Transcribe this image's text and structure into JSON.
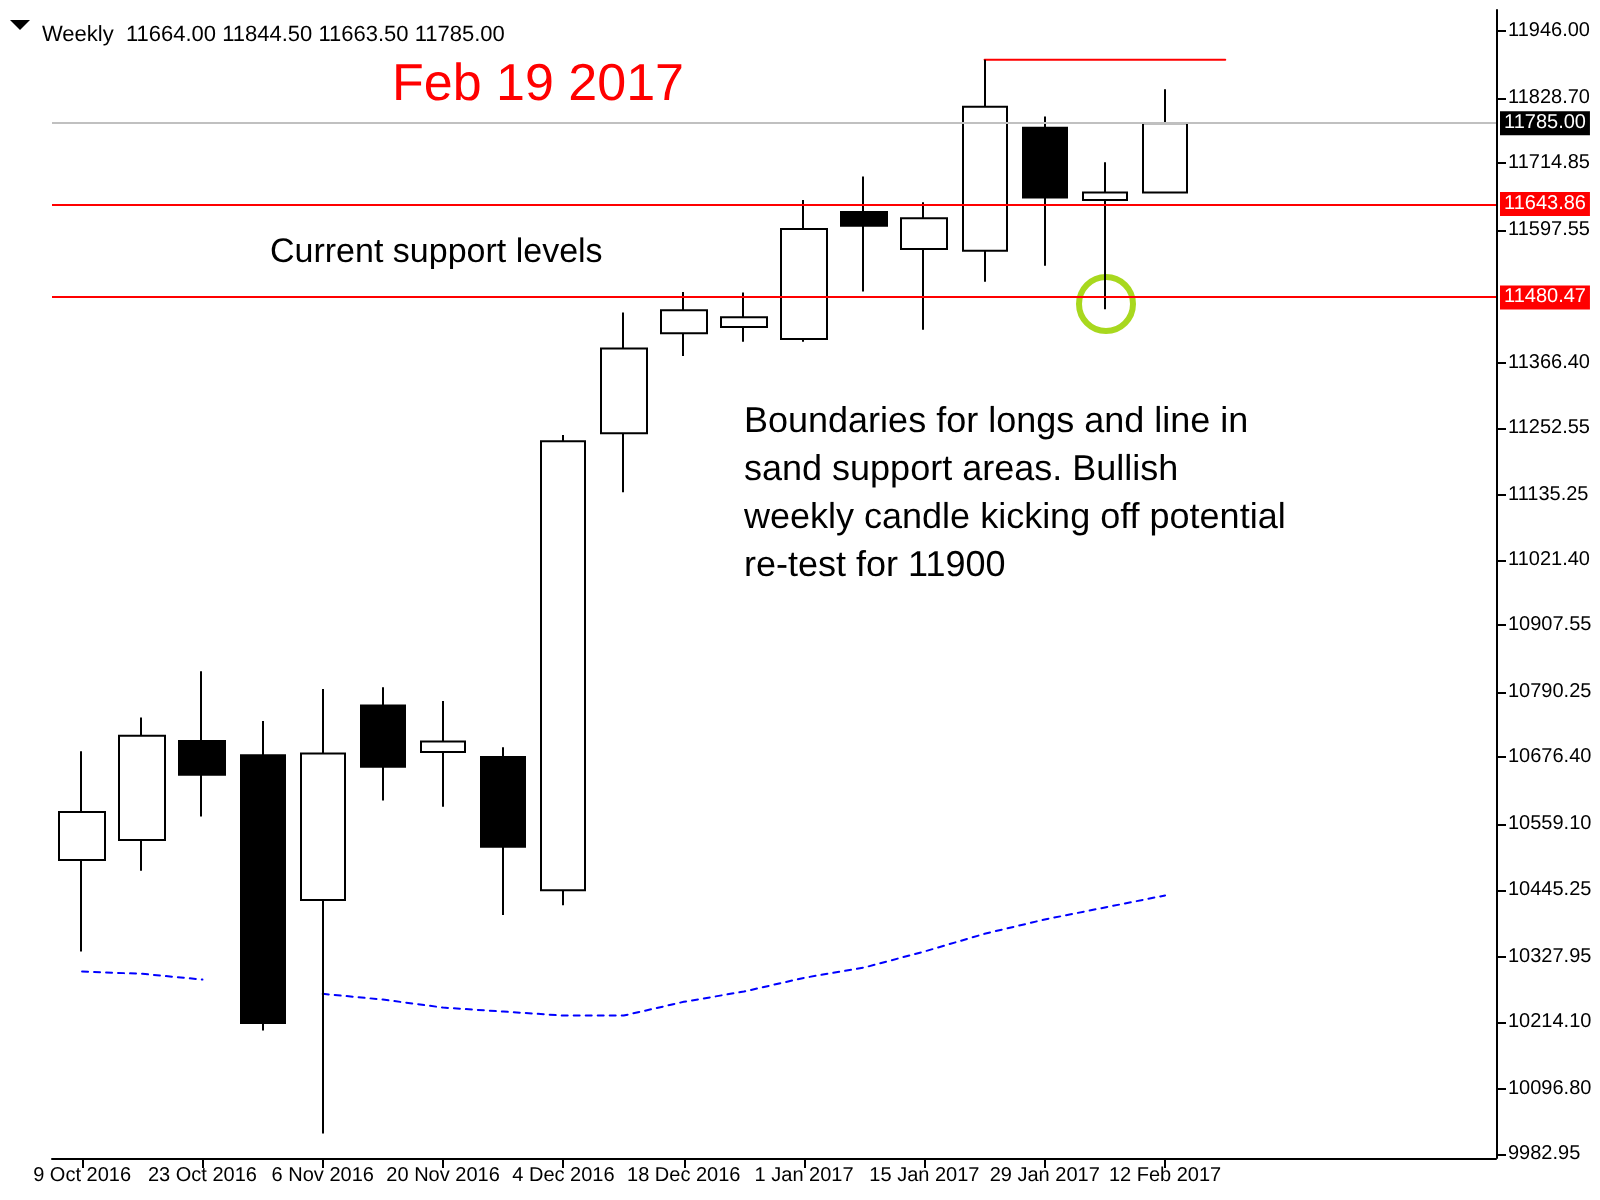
{
  "chart_data": {
    "type": "candlestick",
    "title": "Weekly  11664.00 11844.50 11663.50 11785.00",
    "categories": [
      "9 Oct 2016",
      null,
      "23 Oct 2016",
      null,
      "6 Nov 2016",
      null,
      "20 Nov 2016",
      null,
      "4 Dec 2016",
      null,
      "18 Dec 2016",
      null,
      "1 Jan 2017",
      null,
      "15 Jan 2017",
      null,
      "29 Jan 2017",
      null,
      "12 Feb 2017",
      null,
      null,
      null,
      null,
      null
    ],
    "ohlc": [
      [
        10497,
        10687,
        10337,
        10581
      ],
      [
        10532,
        10746,
        10478,
        10714
      ],
      [
        10705,
        10827,
        10573,
        10646
      ],
      [
        10680,
        10740,
        10199,
        10212
      ],
      [
        10427,
        10796,
        10019,
        10683
      ],
      [
        10767,
        10799,
        10601,
        10660
      ],
      [
        10686,
        10775,
        10590,
        10704
      ],
      [
        10677,
        10694,
        10401,
        10520
      ],
      [
        10444,
        11240,
        10418,
        11229
      ],
      [
        11243,
        11454,
        11140,
        11391
      ],
      [
        11418,
        11490,
        11378,
        11458
      ],
      [
        11429,
        11489,
        11403,
        11446
      ],
      [
        11408,
        11651,
        11403,
        11600
      ],
      [
        11630,
        11692,
        11491,
        11606
      ],
      [
        11565,
        11647,
        11424,
        11619
      ],
      [
        11562,
        11896,
        11508,
        11814
      ],
      [
        11777,
        11797,
        11536,
        11655
      ],
      [
        11651,
        11717,
        11460,
        11664
      ],
      [
        11664.0,
        11844.5,
        11663.5,
        11785.0
      ],
      null,
      null,
      null,
      null,
      null
    ],
    "series": [
      {
        "type": "line",
        "color": "#0000ff",
        "line_style": "dashed",
        "values": [
          10302,
          10298,
          10288,
          null,
          10263,
          10253,
          10239,
          10232,
          10225,
          10225,
          10249,
          10267,
          10291,
          10309,
          10337,
          10368,
          10393,
          10414,
          10435,
          null,
          null,
          null,
          null,
          null
        ]
      },
      {
        "type": "line",
        "color": "#ff0000",
        "line_style": "solid",
        "values": [
          null,
          null,
          null,
          null,
          null,
          null,
          null,
          null,
          null,
          null,
          null,
          null,
          null,
          null,
          null,
          11896,
          11896,
          11896,
          11896,
          11896,
          null,
          null,
          null,
          null
        ]
      }
    ],
    "marker": "none",
    "ylim": [
      9976,
      11983
    ],
    "yticks": [
      {
        "value": 9982.95,
        "label": "9982.95"
      },
      {
        "value": 10096.8,
        "label": "10096.80"
      },
      {
        "value": 10214.1,
        "label": "10214.10"
      },
      {
        "value": 10327.95,
        "label": "10327.95"
      },
      {
        "value": 10445.25,
        "label": "10445.25"
      },
      {
        "value": 10559.1,
        "label": "10559.10"
      },
      {
        "value": 10676.4,
        "label": "10676.40"
      },
      {
        "value": 10790.25,
        "label": "10790.25"
      },
      {
        "value": 10907.55,
        "label": "10907.55"
      },
      {
        "value": 11021.4,
        "label": "11021.40"
      },
      {
        "value": 11135.25,
        "label": "11135.25"
      },
      {
        "value": 11252.55,
        "label": "11252.55"
      },
      {
        "value": 11366.4,
        "label": "11366.40"
      },
      {
        "value": 11597.55,
        "label": "11597.55"
      },
      {
        "value": 11714.85,
        "label": "11714.85"
      },
      {
        "value": 11828.7,
        "label": "11828.70"
      },
      {
        "value": 11946,
        "label": "11946.00"
      }
    ],
    "ref_lines": [
      {
        "axis": "y",
        "value": 11785,
        "label": "11785.00",
        "color": "#c0c0c0"
      },
      {
        "axis": "y",
        "value": 11643.86,
        "label": "11643.86",
        "color": "#ff0000"
      },
      {
        "axis": "y",
        "value": 11480.47,
        "label": "11480.47",
        "color": "#ff0000"
      }
    ],
    "annotations": [
      "Feb 19 2017",
      "Current support levels",
      "Boundaries for longs and line in\nsand support areas. Bullish\nweekly candle kicking off potential\nre-test for 11900"
    ]
  }
}
